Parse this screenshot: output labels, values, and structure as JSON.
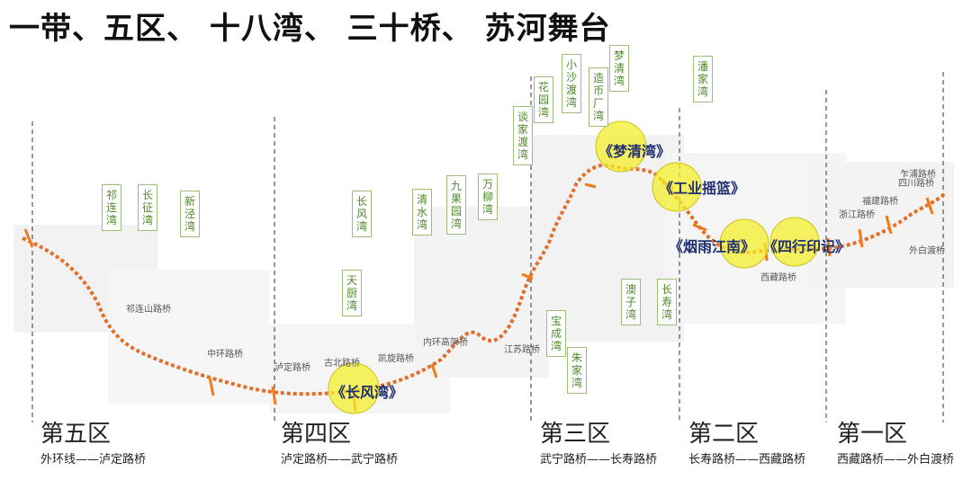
{
  "title": "一带、五区、 十八湾、 三十桥、 苏河舞台",
  "zones": [
    {
      "name": "第五区",
      "range": "外环线——泸定路桥"
    },
    {
      "name": "第四区",
      "range": "泸定路桥——武宁路桥"
    },
    {
      "name": "第三区",
      "range": "武宁路桥——长寿路桥"
    },
    {
      "name": "第二区",
      "range": "长寿路桥——西藏路桥"
    },
    {
      "name": "第一区",
      "range": "西藏路桥——外白渡桥"
    }
  ],
  "bays": [
    "祁连湾",
    "长征湾",
    "新泾湾",
    "长风湾",
    "天厨湾",
    "清水湾",
    "九果园湾",
    "万柳湾",
    "谈家渡湾",
    "花园湾",
    "小沙渡湾",
    "造币厂湾",
    "梦清湾",
    "潘家湾",
    "宝成湾",
    "朱家湾",
    "澳子湾",
    "长寿湾"
  ],
  "highlights": [
    "《长风湾》",
    "《梦清湾》",
    "《工业摇篮》",
    "《烟雨江南》",
    "《四行印记》"
  ],
  "bridges": [
    "祁连山路桥",
    "中环路桥",
    "泸定路桥",
    "古北路桥",
    "凯旋路桥",
    "内环高架桥",
    "江苏路桥",
    "西藏路桥",
    "浙江路桥",
    "福建路桥",
    "四川路桥",
    "乍浦路桥",
    "外白渡桥"
  ],
  "colors": {
    "river": "#e0702a",
    "highlight": "#f4ee2a",
    "bay_text": "#4e8a2a",
    "zone_line": "#333333"
  }
}
